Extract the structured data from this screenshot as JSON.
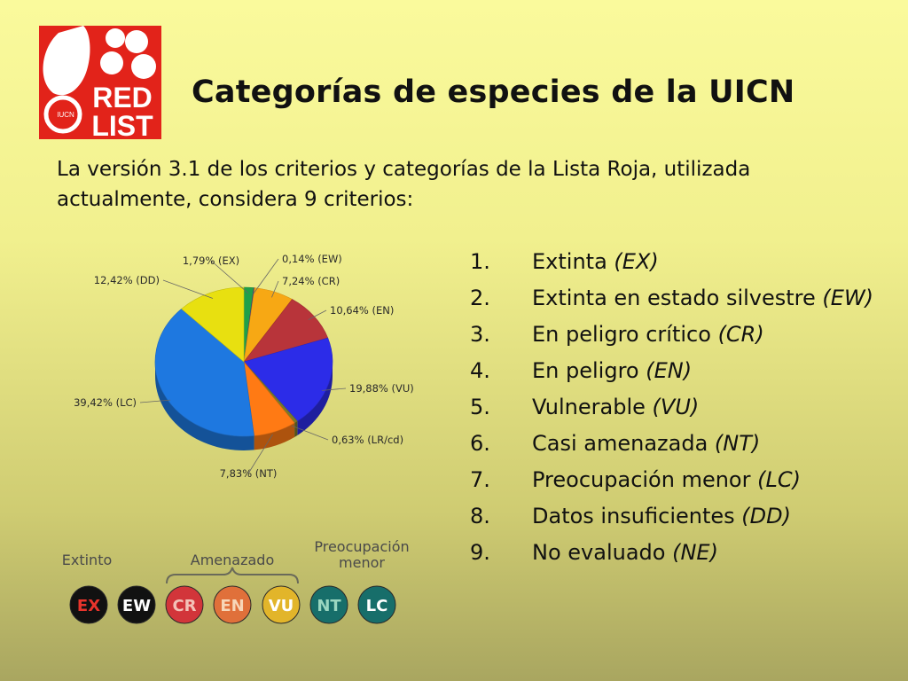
{
  "logo": {
    "lines": [
      "RED",
      "LIST"
    ],
    "mark_text": "IUCN",
    "colors": {
      "background": "#e2231a",
      "foreground": "#ffffff"
    }
  },
  "title": "Categorías de especies de la UICN",
  "intro": "La versión 3.1 de los criterios y categorías de la Lista Roja, utilizada actualmente, considera 9 criterios:",
  "categories": [
    {
      "num": "1.",
      "name": "Extinta",
      "code": "(EX)"
    },
    {
      "num": "2.",
      "name": "Extinta en estado silvestre",
      "code": "(EW)"
    },
    {
      "num": "3.",
      "name": "En peligro crítico",
      "code": "(CR)"
    },
    {
      "num": "4.",
      "name": "En peligro",
      "code": "(EN)"
    },
    {
      "num": "5.",
      "name": "Vulnerable",
      "code": "(VU)"
    },
    {
      "num": "6.",
      "name": "Casi amenazada",
      "code": "(NT)"
    },
    {
      "num": "7.",
      "name": "Preocupación menor",
      "code": "(LC)"
    },
    {
      "num": "8.",
      "name": "Datos insuficientes",
      "code": "(DD)"
    },
    {
      "num": "9.",
      "name": "No evaluado",
      "code": "(NE)"
    }
  ],
  "chart_data": {
    "type": "pie",
    "title": "",
    "slices": [
      {
        "label": "1,79% (EX)",
        "value": 1.79,
        "color": "#1fa04a"
      },
      {
        "label": "0,14% (EW)",
        "value": 0.14,
        "color": "#5a3a8a"
      },
      {
        "label": "7,24% (CR)",
        "value": 7.24,
        "color": "#f7a814"
      },
      {
        "label": "10,64% (EN)",
        "value": 10.64,
        "color": "#b8343a"
      },
      {
        "label": "19,88% (VU)",
        "value": 19.88,
        "color": "#2c2ce8"
      },
      {
        "label": "0,63% (LR/cd)",
        "value": 0.63,
        "color": "#7a7a2a"
      },
      {
        "label": "7,83% (NT)",
        "value": 7.83,
        "color": "#ff7a14"
      },
      {
        "label": "39,42% (LC)",
        "value": 39.42,
        "color": "#1e78e0"
      },
      {
        "label": "12,42% (DD)",
        "value": 12.42,
        "color": "#e8e010"
      }
    ]
  },
  "scale": {
    "groups": [
      {
        "label": "Extinto"
      },
      {
        "label": "Amenazado"
      },
      {
        "label_lines": [
          "Preocupación",
          "menor"
        ]
      }
    ],
    "badges": [
      {
        "code": "EX",
        "fill": "#111111",
        "text_color": "#e8342c"
      },
      {
        "code": "EW",
        "fill": "#111111",
        "text_color": "#ffffff"
      },
      {
        "code": "CR",
        "fill": "#d2353a",
        "text_color": "#f3c2b8"
      },
      {
        "code": "EN",
        "fill": "#e0703a",
        "text_color": "#f7d6b8"
      },
      {
        "code": "VU",
        "fill": "#e2b52a",
        "text_color": "#ffffff"
      },
      {
        "code": "NT",
        "fill": "#176e6a",
        "text_color": "#9ad6c0"
      },
      {
        "code": "LC",
        "fill": "#176e6a",
        "text_color": "#ffffff"
      }
    ]
  }
}
